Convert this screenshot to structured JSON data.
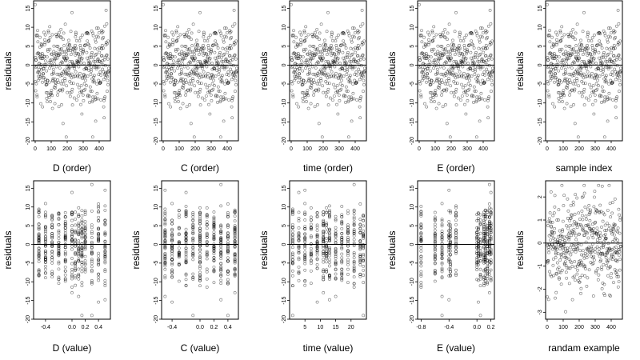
{
  "chart_data": [
    {
      "type": "scatter",
      "xlabel": "D (order)",
      "ylabel": "residuals",
      "ylim": [
        -20,
        17
      ],
      "yticks": [
        -20,
        -15,
        -10,
        -5,
        0,
        5,
        10,
        15
      ],
      "xlim": [
        -10,
        470
      ],
      "xticks": [
        0,
        100,
        200,
        300,
        400
      ],
      "xtick_labels": [
        "0",
        "100",
        "200",
        "300",
        "400"
      ],
      "hline": 0,
      "x_kind": "index",
      "n": 460,
      "spread": 6,
      "x_levels": [],
      "y_source": "r1"
    },
    {
      "type": "scatter",
      "xlabel": "C (order)",
      "ylabel": "residuals",
      "ylim": [
        -20,
        17
      ],
      "yticks": [
        -20,
        -15,
        -10,
        -5,
        0,
        5,
        10,
        15
      ],
      "xlim": [
        -10,
        470
      ],
      "xticks": [
        0,
        100,
        200,
        300,
        400
      ],
      "xtick_labels": [
        "0",
        "100",
        "200",
        "300",
        "400"
      ],
      "hline": 0,
      "x_kind": "index",
      "n": 460,
      "spread": 6,
      "x_levels": [],
      "y_source": "r1"
    },
    {
      "type": "scatter",
      "xlabel": "time (order)",
      "ylabel": "residuals",
      "ylim": [
        -20,
        17
      ],
      "yticks": [
        -20,
        -15,
        -10,
        -5,
        0,
        5,
        10,
        15
      ],
      "xlim": [
        -10,
        470
      ],
      "xticks": [
        0,
        100,
        200,
        300,
        400
      ],
      "xtick_labels": [
        "0",
        "100",
        "200",
        "300",
        "400"
      ],
      "hline": 0,
      "x_kind": "index",
      "n": 460,
      "spread": 6,
      "x_levels": [],
      "y_source": "r1"
    },
    {
      "type": "scatter",
      "xlabel": "E (order)",
      "ylabel": "residuals",
      "ylim": [
        -20,
        17
      ],
      "yticks": [
        -20,
        -15,
        -10,
        -5,
        0,
        5,
        10,
        15
      ],
      "xlim": [
        -10,
        470
      ],
      "xticks": [
        0,
        100,
        200,
        300,
        400
      ],
      "xtick_labels": [
        "0",
        "100",
        "200",
        "300",
        "400"
      ],
      "hline": 0,
      "x_kind": "index",
      "n": 460,
      "spread": 6,
      "x_levels": [],
      "y_source": "r1"
    },
    {
      "type": "scatter",
      "xlabel": "sample index",
      "ylabel": "residuals",
      "ylim": [
        -20,
        17
      ],
      "yticks": [
        -20,
        -15,
        -10,
        -5,
        0,
        5,
        10,
        15
      ],
      "xlim": [
        -10,
        470
      ],
      "xticks": [
        0,
        100,
        200,
        300,
        400
      ],
      "xtick_labels": [
        "0",
        "100",
        "200",
        "300",
        "400"
      ],
      "hline": 0,
      "x_kind": "index",
      "n": 460,
      "spread": 6,
      "x_levels": [],
      "y_source": "r1"
    },
    {
      "type": "scatter",
      "xlabel": "D (value)",
      "ylabel": "residuals",
      "ylim": [
        -20,
        17
      ],
      "yticks": [
        -20,
        -15,
        -10,
        -5,
        0,
        5,
        10,
        15
      ],
      "xlim": [
        -0.58,
        0.58
      ],
      "xticks": [
        -0.4,
        0,
        0.2,
        0.4
      ],
      "xtick_labels": [
        "-0.4",
        "0.0",
        "0.2",
        "0.4"
      ],
      "hline": 0,
      "x_kind": "levels",
      "n": 460,
      "spread": 6,
      "x_levels": [
        -0.5,
        -0.4,
        -0.3,
        -0.2,
        -0.1,
        0,
        0.05,
        0.1,
        0.15,
        0.2,
        0.3,
        0.4,
        0.5
      ],
      "y_source": "r1"
    },
    {
      "type": "scatter",
      "xlabel": "C (value)",
      "ylabel": "residuals",
      "ylim": [
        -20,
        17
      ],
      "yticks": [
        -20,
        -15,
        -10,
        -5,
        0,
        5,
        10,
        15
      ],
      "xlim": [
        -0.55,
        0.55
      ],
      "xticks": [
        -0.4,
        0,
        0.2,
        0.4
      ],
      "xtick_labels": [
        "-0.4",
        "0.0",
        "0.2",
        "0.4"
      ],
      "hline": 0,
      "x_kind": "levels",
      "n": 460,
      "spread": 6,
      "x_levels": [
        -0.5,
        -0.4,
        -0.3,
        -0.2,
        -0.1,
        0,
        0.1,
        0.2,
        0.3,
        0.4,
        0.5
      ],
      "y_source": "r1"
    },
    {
      "type": "scatter",
      "xlabel": "time (value)",
      "ylabel": "residuals",
      "ylim": [
        -20,
        17
      ],
      "yticks": [
        -20,
        -15,
        -10,
        -5,
        0,
        5,
        10,
        15
      ],
      "xlim": [
        0,
        25
      ],
      "xticks": [
        5,
        10,
        15,
        20
      ],
      "xtick_labels": [
        "5",
        "10",
        "15",
        "20"
      ],
      "hline": 0,
      "x_kind": "levels",
      "n": 460,
      "spread": 6,
      "x_levels": [
        1,
        3,
        5,
        7,
        9,
        11,
        12,
        13,
        15,
        17,
        19,
        21,
        23,
        24
      ],
      "y_source": "r1"
    },
    {
      "type": "scatter",
      "xlabel": "E (value)",
      "ylabel": "residuals",
      "ylim": [
        -20,
        17
      ],
      "yticks": [
        -20,
        -15,
        -10,
        -5,
        0,
        5,
        10,
        15
      ],
      "xlim": [
        -0.85,
        0.25
      ],
      "xticks": [
        -0.8,
        -0.4,
        0,
        0.2
      ],
      "xtick_labels": [
        "-0.8",
        "-0.4",
        "0.0",
        "0.2"
      ],
      "hline": 0,
      "x_kind": "levels",
      "n": 460,
      "spread": 6,
      "x_levels": [
        -0.8,
        -0.6,
        -0.5,
        -0.4,
        -0.38,
        -0.3,
        0,
        0.02,
        0.05,
        0.1,
        0.12,
        0.15,
        0.18,
        0.2
      ],
      "y_source": "r1"
    },
    {
      "type": "scatter",
      "xlabel": "randam example",
      "ylabel": "residuals",
      "ylim": [
        -3.3,
        2.7
      ],
      "yticks": [
        -3,
        -2,
        -1,
        0,
        1,
        2
      ],
      "xlim": [
        -10,
        470
      ],
      "xticks": [
        0,
        100,
        200,
        300,
        400
      ],
      "xtick_labels": [
        "0",
        "100",
        "200",
        "300",
        "400"
      ],
      "hline": 0,
      "x_kind": "index",
      "n": 460,
      "spread": 1,
      "x_levels": [],
      "y_source": "r2"
    }
  ]
}
